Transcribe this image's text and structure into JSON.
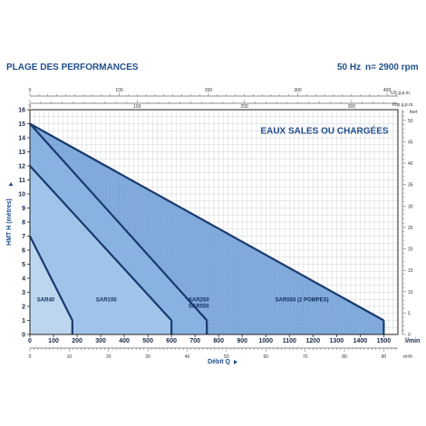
{
  "header": {
    "title": "PLAGE DES PERFORMANCES",
    "frequency": "50 Hz",
    "speed": "n= 2900 rpm"
  },
  "chart_data": {
    "type": "area",
    "title": "EAUX SALES OU CHARGÉES",
    "xlabel": "Débit Q",
    "ylabel": "HMT H (mètres)",
    "x_unit": "l/min",
    "xlim": [
      0,
      1560
    ],
    "ylim": [
      0,
      16
    ],
    "x_ticks": [
      0,
      100,
      200,
      300,
      400,
      500,
      600,
      700,
      800,
      900,
      1000,
      1100,
      1200,
      1300,
      1400,
      1500
    ],
    "y_ticks": [
      0,
      1,
      2,
      3,
      4,
      5,
      6,
      7,
      8,
      9,
      10,
      11,
      12,
      13,
      14,
      15,
      16
    ],
    "grid": true,
    "secondary_axes": {
      "top_us_gpm": {
        "label": "US g.p.m.",
        "ticks": [
          0,
          100,
          200,
          300,
          400
        ]
      },
      "top_imp_gpm": {
        "label": "Imp g.p.m.",
        "ticks": [
          0,
          100,
          200,
          300
        ]
      },
      "bottom_m3h": {
        "label": "m³/h",
        "ticks": [
          0,
          10,
          20,
          30,
          40,
          50,
          60,
          70,
          80,
          90
        ]
      },
      "right_feet": {
        "label": "feet",
        "ticks": [
          0,
          5,
          10,
          15,
          20,
          25,
          30,
          35,
          40,
          45,
          50
        ]
      }
    },
    "series": [
      {
        "name": "SAR550 (2 POMPES)",
        "x": [
          0,
          1500
        ],
        "y": [
          15,
          1
        ],
        "color": "#6699d6"
      },
      {
        "name": "SAR250 SAR550",
        "x": [
          0,
          750
        ],
        "y": [
          15,
          1
        ],
        "color": "#8ab4e2"
      },
      {
        "name": "SAR100",
        "x": [
          0,
          600
        ],
        "y": [
          12,
          1
        ],
        "color": "#a6c8ea"
      },
      {
        "name": "SAR40",
        "x": [
          0,
          180
        ],
        "y": [
          7,
          1
        ],
        "color": "#c2daf2"
      }
    ],
    "region_labels": [
      {
        "text": "SAR40",
        "x": 30,
        "y": 2.35
      },
      {
        "text": "SAR100",
        "x": 280,
        "y": 2.35
      },
      {
        "text": "SAR250",
        "x": 672,
        "y": 2.35
      },
      {
        "text": "SAR550",
        "x": 672,
        "y": 1.9
      },
      {
        "text": "SAR550 (2 POMPES)",
        "x": 1040,
        "y": 2.35
      }
    ]
  }
}
